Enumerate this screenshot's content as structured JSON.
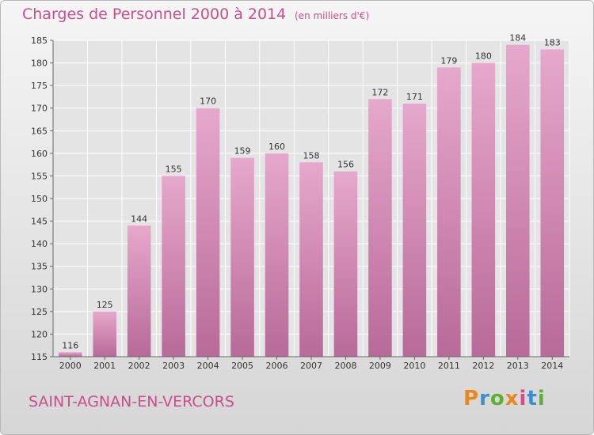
{
  "header": {
    "title": "Charges de Personnel 2000 à 2014",
    "subtitle": "(en milliers d'€)"
  },
  "footer": {
    "commune": "SAINT-AGNAN-EN-VERCORS",
    "logo_letters": [
      "P",
      "r",
      "o",
      "x",
      "i",
      "t",
      "i"
    ],
    "logo_colors": [
      "#e8891f",
      "#3b8fd0",
      "#5cb133",
      "#e8891f",
      "#d94a8a",
      "#3b8fd0",
      "#5cb133"
    ]
  },
  "colors": {
    "bar_top": "#e6a8cc",
    "bar_bottom": "#b86a98",
    "text_accent": "#c94f8a",
    "axis_text": "#333333"
  },
  "chart_data": {
    "type": "bar",
    "categories": [
      "2000",
      "2001",
      "2002",
      "2003",
      "2004",
      "2005",
      "2006",
      "2007",
      "2008",
      "2009",
      "2010",
      "2011",
      "2012",
      "2013",
      "2014"
    ],
    "values": [
      116,
      125,
      144,
      155,
      170,
      159,
      160,
      158,
      156,
      172,
      171,
      179,
      180,
      184,
      183
    ],
    "ylim": [
      115,
      185
    ],
    "yticks": [
      115,
      120,
      125,
      130,
      135,
      140,
      145,
      150,
      155,
      160,
      165,
      170,
      175,
      180,
      185
    ],
    "grid": true
  }
}
